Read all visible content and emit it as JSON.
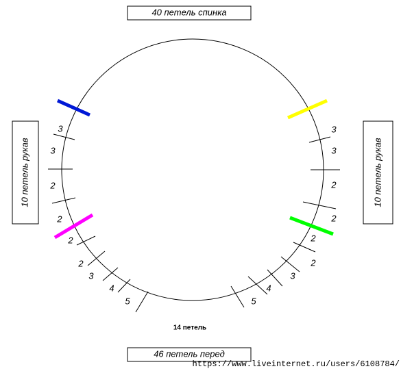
{
  "labels": {
    "top": "40 петель спинка",
    "bottom": "46 петель перед",
    "left": "10 петель рукав",
    "right": "10 петель рукав",
    "center": "14 петель"
  },
  "counts": {
    "left": [
      "3",
      "3",
      "2",
      "2",
      "2",
      "2",
      "3",
      "4",
      "5"
    ],
    "right": [
      "3",
      "3",
      "2",
      "2",
      "2",
      "2",
      "3",
      "4",
      "5"
    ]
  },
  "watermark": "https://www.liveinternet.ru/users/6108784/"
}
